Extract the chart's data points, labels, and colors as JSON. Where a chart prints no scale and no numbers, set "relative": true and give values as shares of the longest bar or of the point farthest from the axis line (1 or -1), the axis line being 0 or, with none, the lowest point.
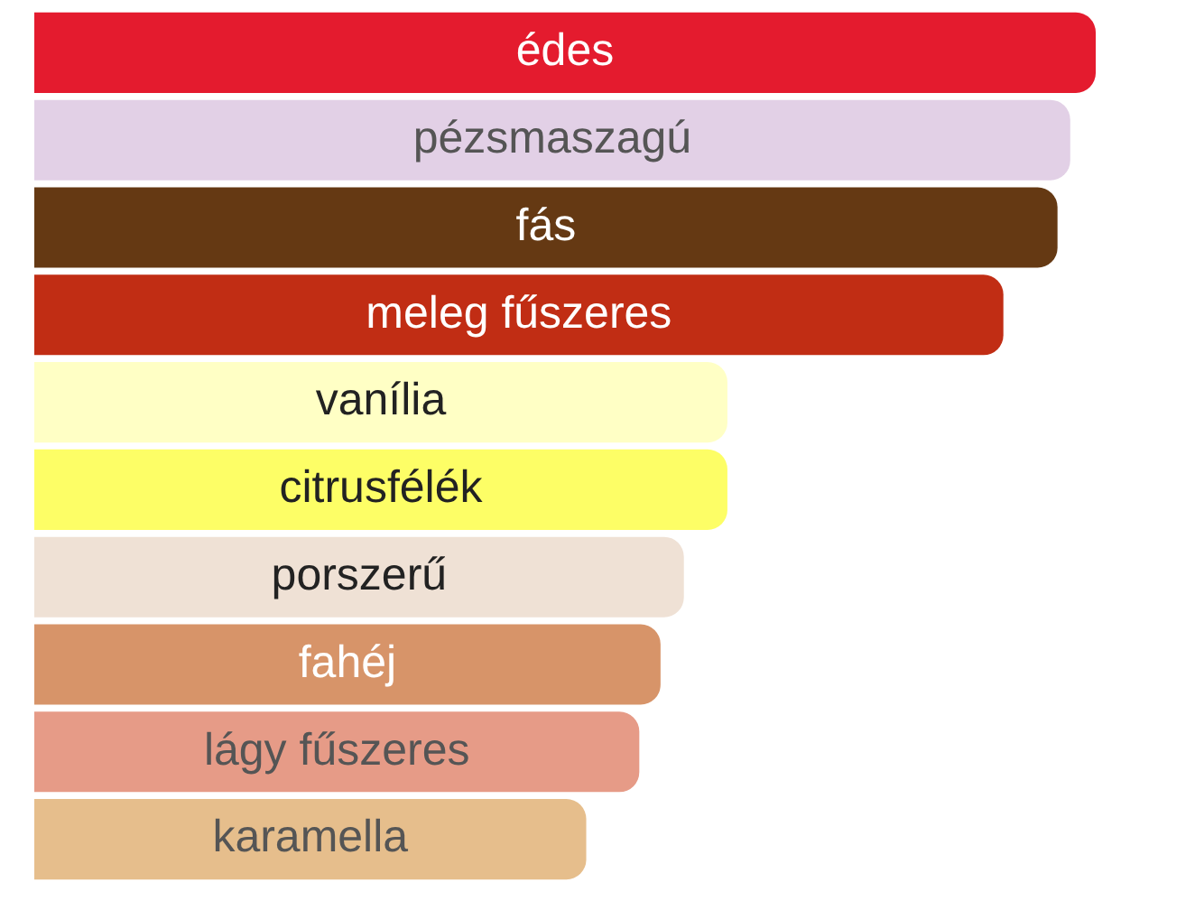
{
  "chart_data": {
    "type": "bar",
    "orientation": "horizontal",
    "relative": true,
    "categories": [
      "édes",
      "pézsmaszagú",
      "fás",
      "meleg fűszeres",
      "vanília",
      "citrusfélék",
      "porszerű",
      "fahéj",
      "lágy fűszeres",
      "karamella"
    ],
    "values": [
      1,
      0.976,
      0.964,
      0.913,
      0.653,
      0.653,
      0.612,
      0.59,
      0.57,
      0.52
    ],
    "colors": [
      "#e41b2e",
      "#e2d0e6",
      "#653913",
      "#c12d14",
      "#ffffc5",
      "#fdfe66",
      "#efe1d5",
      "#d79469",
      "#e69b87",
      "#e6be8c"
    ],
    "legend": false
  }
}
